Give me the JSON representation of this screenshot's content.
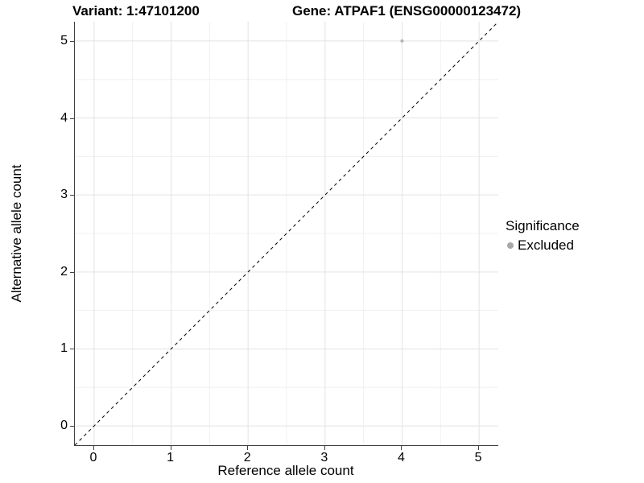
{
  "figure": {
    "title_variant": "Variant: 1:47101200",
    "title_gene": "Gene: ATPAF1 (ENSG00000123472)",
    "xlabel": "Reference allele count",
    "ylabel": "Alternative allele count",
    "legend_title": "Significance",
    "legend_item": "Excluded"
  },
  "chart_data": {
    "type": "scatter",
    "title": "Variant: 1:47101200   Gene: ATPAF1 (ENSG00000123472)",
    "xlabel": "Reference allele count",
    "ylabel": "Alternative allele count",
    "xlim": [
      -0.25,
      5.25
    ],
    "ylim": [
      -0.25,
      5.25
    ],
    "x_ticks": [
      0,
      1,
      2,
      3,
      4,
      5
    ],
    "y_ticks": [
      0,
      1,
      2,
      3,
      4,
      5
    ],
    "x_minor": [
      0.5,
      1.5,
      2.5,
      3.5,
      4.5
    ],
    "y_minor": [
      0.5,
      1.5,
      2.5,
      3.5,
      4.5
    ],
    "grid": true,
    "legend": {
      "title": "Significance",
      "position": "right",
      "entries": [
        {
          "label": "Excluded",
          "color": "#a8a8a8"
        }
      ]
    },
    "series": [
      {
        "name": "Excluded",
        "color": "#b3b3b3",
        "point_radius": 2,
        "points": [
          [
            4,
            5
          ]
        ]
      }
    ],
    "reference_line": {
      "type": "identity",
      "equation": "y = x",
      "style": "dashed",
      "color": "#000000"
    },
    "colors": {
      "grid_major": "#e3e3e3",
      "grid_minor": "#f0f0f0",
      "axis": "#404040",
      "text": "#000000"
    }
  }
}
